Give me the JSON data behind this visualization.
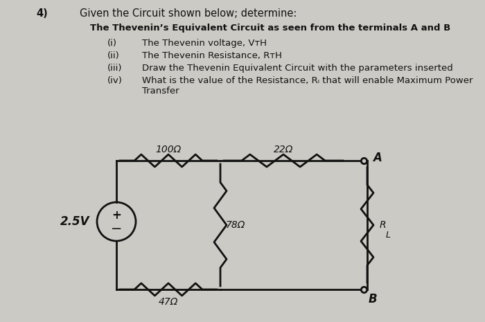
{
  "background_color": "#cccac4",
  "title_number": "4)",
  "title_text": "Given the Circuit shown below; determine:",
  "subtitle": "The Thevenin’s Equivalent Circuit as seen from the terminals A and B",
  "item_nums": [
    "(i)",
    "(ii)",
    "(iii)",
    "(iv)"
  ],
  "item_texts": [
    "The Thevenin voltage, VᴛH",
    "The Thevenin Resistance, RᴛH",
    "Draw the Thevenin Equivalent Circuit with the parameters inserted",
    "What is the value of the Resistance, Rₗ that will enable Maximum Power\nTransfer"
  ],
  "voltage_source_label": "2.5V",
  "r1_label": "100Ω",
  "r2_label": "22Ω",
  "r3_label": "78Ω",
  "r4_label": "47Ω",
  "rl_label": "R",
  "rl_sub": "L",
  "node_a": "A",
  "node_b": "B",
  "line_color": "#111111",
  "text_color": "#111111"
}
